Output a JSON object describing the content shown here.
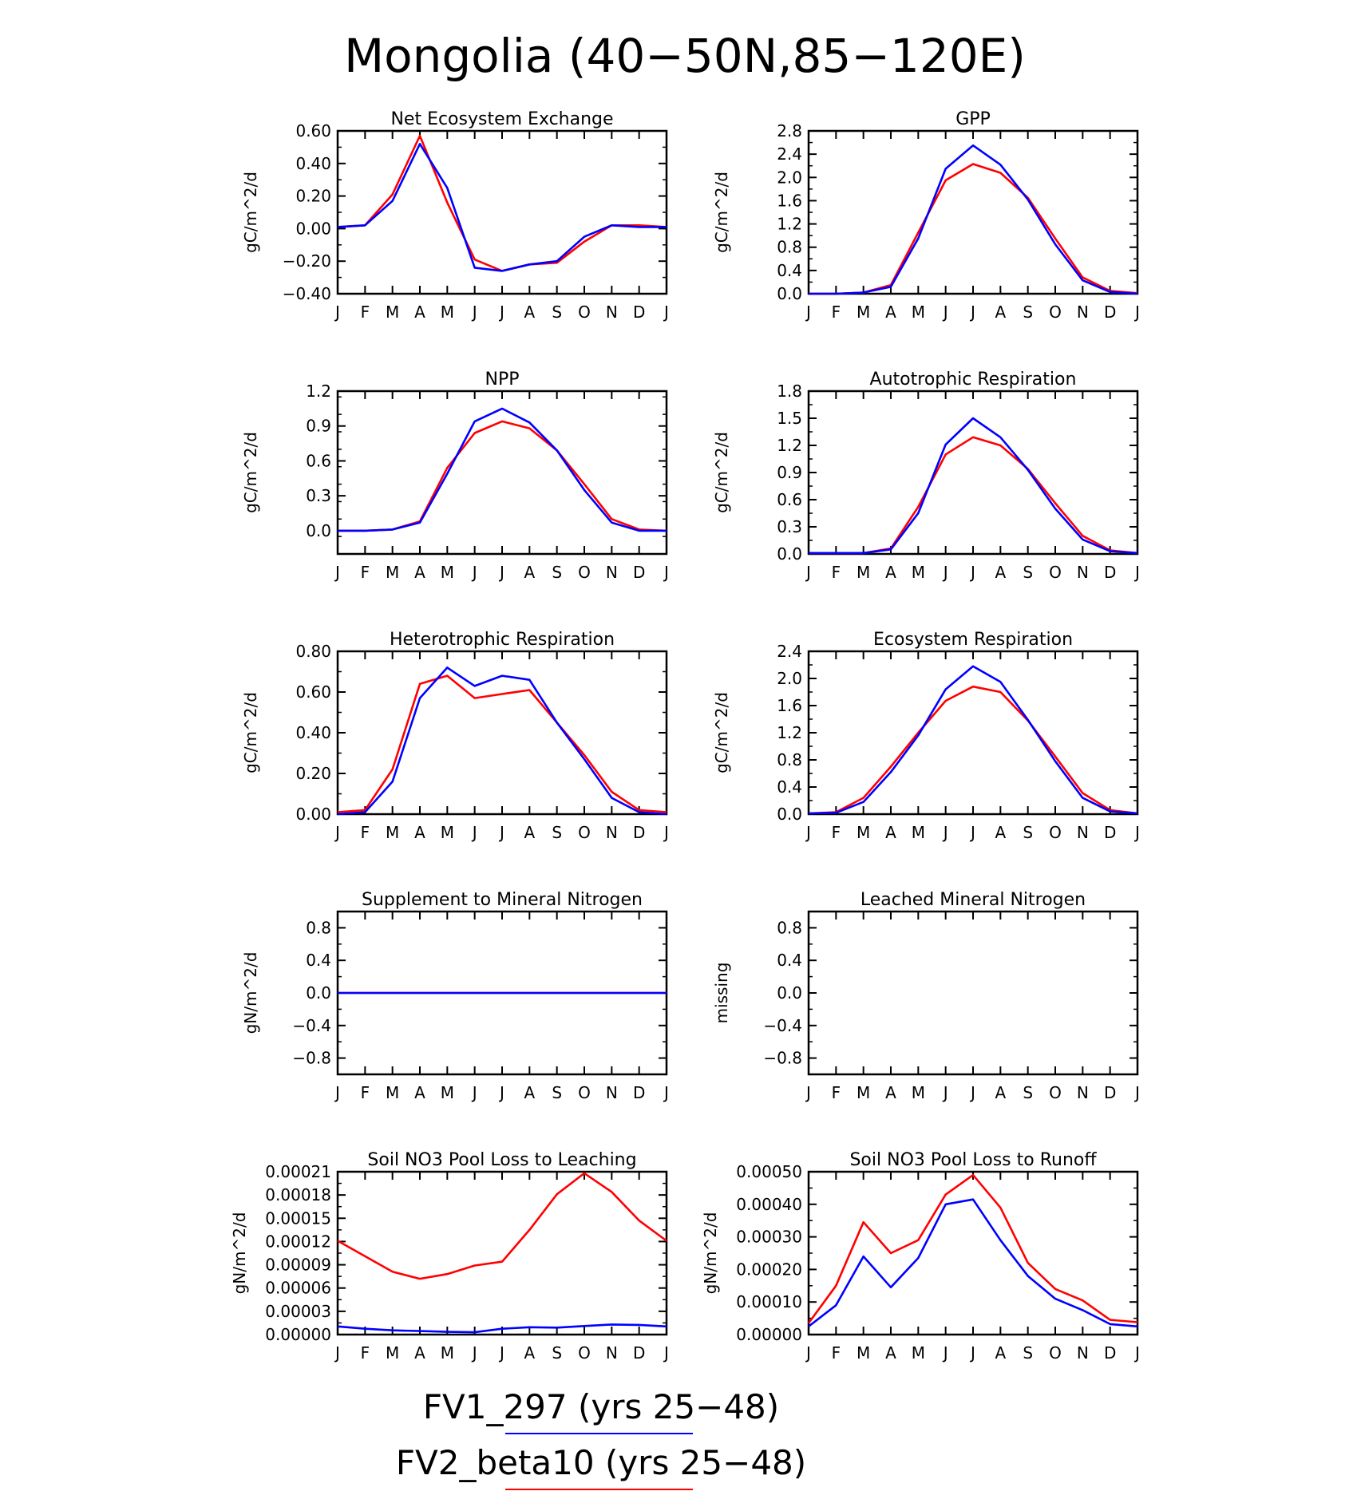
{
  "figure": {
    "title": "Mongolia (40−50N,85−120E)",
    "legend": [
      {
        "label": "FV1_297 (yrs 25−48)",
        "color": "#0000ff"
      },
      {
        "label": "FV2_beta10 (yrs 25−48)",
        "color": "#ff0000"
      }
    ]
  },
  "chart_data": [
    {
      "type": "line",
      "title": "Net Ecosystem Exchange",
      "ylabel": "gC/m^2/d",
      "x": [
        "J",
        "F",
        "M",
        "A",
        "M",
        "J",
        "J",
        "A",
        "S",
        "O",
        "N",
        "D",
        "J"
      ],
      "ylim": [
        -0.4,
        0.6
      ],
      "yticks": [
        -0.4,
        -0.2,
        0.0,
        0.2,
        0.4,
        0.6
      ],
      "ytick_labels": [
        "−0.40",
        "−0.20",
        "0.00",
        "0.20",
        "0.40",
        "0.60"
      ],
      "series": [
        {
          "color": "#ff0000",
          "values": [
            0.01,
            0.02,
            0.21,
            0.57,
            0.16,
            -0.19,
            -0.26,
            -0.22,
            -0.21,
            -0.08,
            0.02,
            0.02,
            0.01
          ]
        },
        {
          "color": "#0000ff",
          "values": [
            0.01,
            0.02,
            0.17,
            0.52,
            0.25,
            -0.24,
            -0.26,
            -0.22,
            -0.2,
            -0.05,
            0.02,
            0.01,
            0.01
          ]
        }
      ]
    },
    {
      "type": "line",
      "title": "GPP",
      "ylabel": "gC/m^2/d",
      "x": [
        "J",
        "F",
        "M",
        "A",
        "M",
        "J",
        "J",
        "A",
        "S",
        "O",
        "N",
        "D",
        "J"
      ],
      "ylim": [
        0.0,
        2.8
      ],
      "yticks": [
        0.0,
        0.4,
        0.8,
        1.2,
        1.6,
        2.0,
        2.4,
        2.8
      ],
      "ytick_labels": [
        "0.0",
        "0.4",
        "0.8",
        "1.2",
        "1.6",
        "2.0",
        "2.4",
        "2.8"
      ],
      "series": [
        {
          "color": "#ff0000",
          "values": [
            0.0,
            0.0,
            0.02,
            0.15,
            1.05,
            1.95,
            2.23,
            2.08,
            1.65,
            0.95,
            0.28,
            0.05,
            0.01
          ]
        },
        {
          "color": "#0000ff",
          "values": [
            0.0,
            0.0,
            0.02,
            0.12,
            0.95,
            2.15,
            2.55,
            2.22,
            1.62,
            0.85,
            0.23,
            0.03,
            0.0
          ]
        }
      ]
    },
    {
      "type": "line",
      "title": "NPP",
      "ylabel": "gC/m^2/d",
      "x": [
        "J",
        "F",
        "M",
        "A",
        "M",
        "J",
        "J",
        "A",
        "S",
        "O",
        "N",
        "D",
        "J"
      ],
      "ylim": [
        -0.2,
        1.2
      ],
      "yticks": [
        0.0,
        0.3,
        0.6,
        0.9,
        1.2
      ],
      "ytick_labels": [
        "0.0",
        "0.3",
        "0.6",
        "0.9",
        "1.2"
      ],
      "series": [
        {
          "color": "#ff0000",
          "values": [
            0.0,
            0.0,
            0.01,
            0.08,
            0.54,
            0.84,
            0.94,
            0.88,
            0.69,
            0.4,
            0.1,
            0.01,
            0.0
          ]
        },
        {
          "color": "#0000ff",
          "values": [
            0.0,
            0.0,
            0.01,
            0.07,
            0.49,
            0.94,
            1.05,
            0.93,
            0.69,
            0.35,
            0.07,
            0.0,
            0.0
          ]
        }
      ]
    },
    {
      "type": "line",
      "title": "Autotrophic Respiration",
      "ylabel": "gC/m^2/d",
      "x": [
        "J",
        "F",
        "M",
        "A",
        "M",
        "J",
        "J",
        "A",
        "S",
        "O",
        "N",
        "D",
        "J"
      ],
      "ylim": [
        0.0,
        1.8
      ],
      "yticks": [
        0.0,
        0.3,
        0.6,
        0.9,
        1.2,
        1.5,
        1.8
      ],
      "ytick_labels": [
        "0.0",
        "0.3",
        "0.6",
        "0.9",
        "1.2",
        "1.5",
        "1.8"
      ],
      "series": [
        {
          "color": "#ff0000",
          "values": [
            0.01,
            0.01,
            0.01,
            0.06,
            0.52,
            1.1,
            1.29,
            1.2,
            0.94,
            0.56,
            0.2,
            0.04,
            0.01
          ]
        },
        {
          "color": "#0000ff",
          "values": [
            0.01,
            0.01,
            0.01,
            0.05,
            0.45,
            1.21,
            1.5,
            1.29,
            0.93,
            0.5,
            0.16,
            0.03,
            0.01
          ]
        }
      ]
    },
    {
      "type": "line",
      "title": "Heterotrophic Respiration",
      "ylabel": "gC/m^2/d",
      "x": [
        "J",
        "F",
        "M",
        "A",
        "M",
        "J",
        "J",
        "A",
        "S",
        "O",
        "N",
        "D",
        "J"
      ],
      "ylim": [
        0.0,
        0.8
      ],
      "yticks": [
        0.0,
        0.2,
        0.4,
        0.6,
        0.8
      ],
      "ytick_labels": [
        "0.00",
        "0.20",
        "0.40",
        "0.60",
        "0.80"
      ],
      "series": [
        {
          "color": "#ff0000",
          "values": [
            0.01,
            0.02,
            0.22,
            0.64,
            0.68,
            0.57,
            0.59,
            0.61,
            0.45,
            0.29,
            0.11,
            0.02,
            0.01
          ]
        },
        {
          "color": "#0000ff",
          "values": [
            0.0,
            0.01,
            0.16,
            0.57,
            0.72,
            0.63,
            0.68,
            0.66,
            0.45,
            0.27,
            0.08,
            0.01,
            0.0
          ]
        }
      ]
    },
    {
      "type": "line",
      "title": "Ecosystem Respiration",
      "ylabel": "gC/m^2/d",
      "x": [
        "J",
        "F",
        "M",
        "A",
        "M",
        "J",
        "J",
        "A",
        "S",
        "O",
        "N",
        "D",
        "J"
      ],
      "ylim": [
        0.0,
        2.4
      ],
      "yticks": [
        0.0,
        0.4,
        0.8,
        1.2,
        1.6,
        2.0,
        2.4
      ],
      "ytick_labels": [
        "0.0",
        "0.4",
        "0.8",
        "1.2",
        "1.6",
        "2.0",
        "2.4"
      ],
      "series": [
        {
          "color": "#ff0000",
          "values": [
            0.01,
            0.03,
            0.24,
            0.7,
            1.2,
            1.67,
            1.88,
            1.8,
            1.38,
            0.85,
            0.31,
            0.06,
            0.01
          ]
        },
        {
          "color": "#0000ff",
          "values": [
            0.01,
            0.02,
            0.18,
            0.62,
            1.16,
            1.84,
            2.18,
            1.95,
            1.39,
            0.78,
            0.24,
            0.04,
            0.01
          ]
        }
      ]
    },
    {
      "type": "line",
      "title": "Supplement to Mineral Nitrogen",
      "ylabel": "gN/m^2/d",
      "x": [
        "J",
        "F",
        "M",
        "A",
        "M",
        "J",
        "J",
        "A",
        "S",
        "O",
        "N",
        "D",
        "J"
      ],
      "ylim": [
        -1.0,
        1.0
      ],
      "yticks": [
        -0.8,
        -0.4,
        0.0,
        0.4,
        0.8
      ],
      "ytick_labels": [
        "−0.8",
        "−0.4",
        "0.0",
        "0.4",
        "0.8"
      ],
      "series": [
        {
          "color": "#ff0000",
          "values": [
            0,
            0,
            0,
            0,
            0,
            0,
            0,
            0,
            0,
            0,
            0,
            0,
            0
          ]
        },
        {
          "color": "#0000ff",
          "values": [
            0,
            0,
            0,
            0,
            0,
            0,
            0,
            0,
            0,
            0,
            0,
            0,
            0
          ]
        }
      ]
    },
    {
      "type": "line",
      "title": "Leached Mineral Nitrogen",
      "ylabel": "missing",
      "x": [
        "J",
        "F",
        "M",
        "A",
        "M",
        "J",
        "J",
        "A",
        "S",
        "O",
        "N",
        "D",
        "J"
      ],
      "ylim": [
        -1.0,
        1.0
      ],
      "yticks": [
        -0.8,
        -0.4,
        0.0,
        0.4,
        0.8
      ],
      "ytick_labels": [
        "−0.8",
        "−0.4",
        "0.0",
        "0.4",
        "0.8"
      ],
      "series": []
    },
    {
      "type": "line",
      "title": "Soil NO3 Pool Loss to Leaching",
      "ylabel": "gN/m^2/d",
      "x": [
        "J",
        "F",
        "M",
        "A",
        "M",
        "J",
        "J",
        "A",
        "S",
        "O",
        "N",
        "D",
        "J"
      ],
      "ylim": [
        0.0,
        0.00021
      ],
      "yticks": [
        0.0,
        3e-05,
        6e-05,
        9e-05,
        0.00012,
        0.00015,
        0.00018,
        0.00021
      ],
      "ytick_labels": [
        "0.00000",
        "0.00003",
        "0.00006",
        "0.00009",
        "0.00012",
        "0.00015",
        "0.00018",
        "0.00021"
      ],
      "series": [
        {
          "color": "#ff0000",
          "values": [
            0.000121,
            0.000101,
            8.1e-05,
            7.2e-05,
            7.8e-05,
            8.9e-05,
            9.4e-05,
            0.000135,
            0.000181,
            0.000208,
            0.000184,
            0.000147,
            0.000121
          ]
        },
        {
          "color": "#0000ff",
          "values": [
            1.05e-05,
            7.5e-06,
            5.5e-06,
            4.5e-06,
            3.5e-06,
            3e-06,
            7.5e-06,
            9.5e-06,
            9e-06,
            1.1e-05,
            1.3e-05,
            1.25e-05,
            1.05e-05
          ]
        }
      ]
    },
    {
      "type": "line",
      "title": "Soil NO3 Pool Loss to Runoff",
      "ylabel": "gN/m^2/d",
      "x": [
        "J",
        "F",
        "M",
        "A",
        "M",
        "J",
        "J",
        "A",
        "S",
        "O",
        "N",
        "D",
        "J"
      ],
      "ylim": [
        0.0,
        0.0005
      ],
      "yticks": [
        0.0,
        0.0001,
        0.0002,
        0.0003,
        0.0004,
        0.0005
      ],
      "ytick_labels": [
        "0.00000",
        "0.00010",
        "0.00020",
        "0.00030",
        "0.00040",
        "0.00050"
      ],
      "series": [
        {
          "color": "#ff0000",
          "values": [
            3.5e-05,
            0.00015,
            0.000345,
            0.00025,
            0.00029,
            0.00043,
            0.00049,
            0.00039,
            0.00022,
            0.00014,
            0.000105,
            4.5e-05,
            3.8e-05
          ]
        },
        {
          "color": "#0000ff",
          "values": [
            2.5e-05,
            9e-05,
            0.00024,
            0.000145,
            0.000235,
            0.0004,
            0.000415,
            0.00029,
            0.00018,
            0.00011,
            7.5e-05,
            3.2e-05,
            2.5e-05
          ]
        }
      ]
    }
  ]
}
